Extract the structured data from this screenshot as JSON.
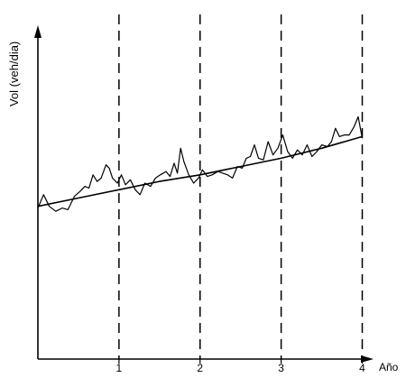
{
  "chart_data": {
    "type": "line",
    "title": "",
    "xlabel": "Año",
    "ylabel": "Vol (veh/dia)",
    "xlim": [
      0,
      4.05
    ],
    "ylim": [
      0,
      10
    ],
    "grid": false,
    "x_ticks": [
      1,
      2,
      3,
      4
    ],
    "x_tick_labels": [
      "1",
      "2",
      "3",
      "4"
    ],
    "vertical_dashed_lines_at": [
      1,
      2,
      3,
      4
    ],
    "series": [
      {
        "style": "jagged",
        "x": [
          0,
          0.07,
          0.14,
          0.22,
          0.3,
          0.37,
          0.45,
          0.52,
          0.58,
          0.63,
          0.68,
          0.73,
          0.78,
          0.84,
          0.88,
          0.92,
          0.98,
          1.03,
          1.08,
          1.14,
          1.2,
          1.26,
          1.32,
          1.39,
          1.45,
          1.51,
          1.58,
          1.63,
          1.68,
          1.72,
          1.76,
          1.8,
          1.86,
          1.92,
          1.98,
          2.03,
          2.09,
          2.15,
          2.22,
          2.28,
          2.34,
          2.4,
          2.46,
          2.52,
          2.57,
          2.62,
          2.67,
          2.72,
          2.78,
          2.84,
          2.9,
          2.96,
          3.02,
          3.08,
          3.14,
          3.2,
          3.26,
          3.32,
          3.38,
          3.44,
          3.5,
          3.57,
          3.62,
          3.67,
          3.72,
          3.78,
          3.84,
          3.9,
          3.95,
          4.0
        ],
        "y": [
          4.55,
          4.95,
          4.6,
          4.45,
          4.55,
          4.5,
          4.9,
          5.05,
          5.2,
          5.15,
          5.55,
          5.35,
          5.45,
          5.85,
          5.75,
          5.45,
          5.3,
          5.55,
          5.25,
          5.4,
          5.1,
          4.95,
          5.3,
          5.2,
          5.45,
          5.55,
          5.65,
          5.5,
          5.9,
          5.6,
          6.35,
          5.95,
          5.55,
          5.3,
          5.45,
          5.7,
          5.5,
          5.55,
          5.65,
          5.6,
          5.55,
          5.45,
          5.8,
          5.75,
          6.05,
          6.1,
          6.45,
          6.05,
          6.0,
          6.55,
          6.15,
          6.35,
          6.75,
          6.25,
          6.05,
          6.3,
          6.15,
          6.45,
          6.1,
          6.25,
          6.45,
          6.4,
          6.55,
          6.95,
          6.7,
          6.75,
          6.75,
          7.0,
          7.3,
          6.65
        ]
      },
      {
        "style": "smooth",
        "x": [
          0,
          0.5,
          1,
          1.5,
          2,
          2.5,
          3,
          3.5,
          4
        ],
        "y": [
          4.6,
          4.85,
          5.1,
          5.35,
          5.55,
          5.8,
          6.05,
          6.35,
          6.7
        ]
      }
    ]
  }
}
